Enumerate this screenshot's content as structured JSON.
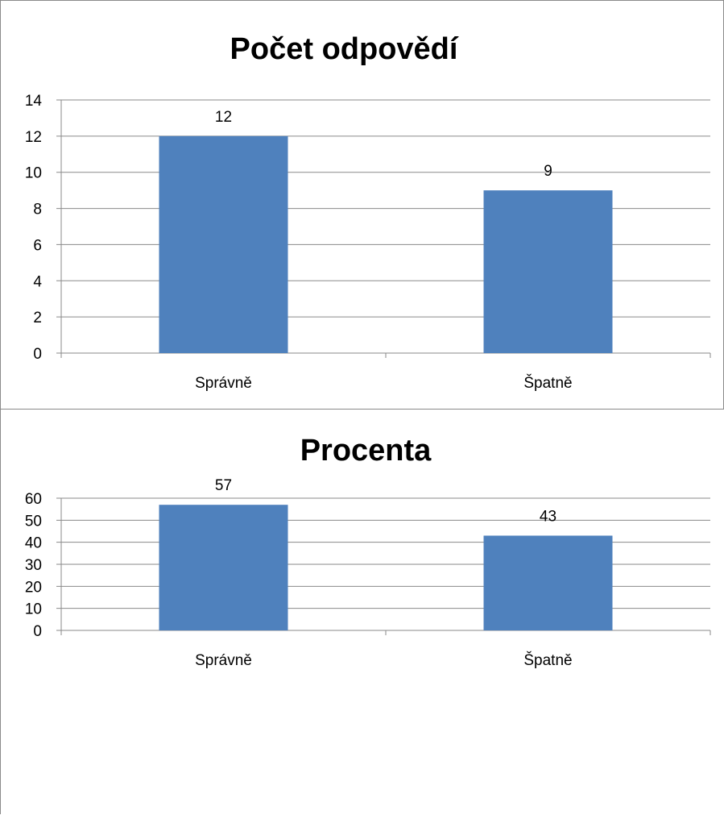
{
  "chart_data": [
    {
      "type": "bar",
      "title": "Počet odpovědí",
      "xlabel": "",
      "ylabel": "",
      "categories": [
        "Správně",
        "Špatně"
      ],
      "values": [
        12,
        9
      ],
      "data_labels": [
        "12",
        "9"
      ],
      "y_ticks": [
        "0",
        "2",
        "4",
        "6",
        "8",
        "10",
        "12",
        "14"
      ],
      "ylim": [
        0,
        14
      ],
      "grid": true,
      "legend": "none",
      "bar_color": "#4f81bd"
    },
    {
      "type": "bar",
      "title": "Procenta",
      "xlabel": "",
      "ylabel": "",
      "categories": [
        "Správně",
        "Špatně"
      ],
      "values": [
        57,
        43
      ],
      "data_labels": [
        "57",
        "43"
      ],
      "y_ticks": [
        "0",
        "10",
        "20",
        "30",
        "40",
        "50",
        "60"
      ],
      "ylim": [
        0,
        60
      ],
      "grid": true,
      "legend": "none",
      "bar_color": "#4f81bd"
    }
  ]
}
